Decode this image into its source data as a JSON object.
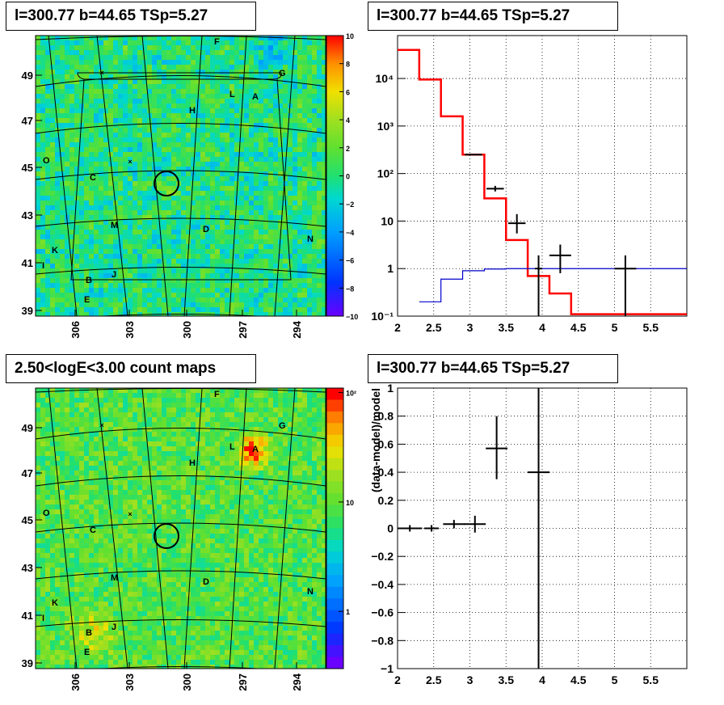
{
  "panels": {
    "map_top_title": "l=300.77 b=44.65 TSp=5.27",
    "spec_title": "l=300.77 b=44.65 TSp=5.27",
    "count_title": "2.50<logE<3.00 count maps",
    "resid_title": "l=300.77 b=44.65 TSp=5.27"
  },
  "chart_data": [
    {
      "type": "heatmap",
      "name": "ts_map",
      "x_ticks": [
        "306",
        "303",
        "300",
        "297",
        "294"
      ],
      "y_ticks": [
        "49",
        "47",
        "45",
        "43",
        "41",
        "39"
      ],
      "colorbar_ticks": [
        "10",
        "8",
        "6",
        "4",
        "2",
        "0",
        "−2",
        "−4",
        "−6",
        "−8",
        "−10"
      ],
      "zlim": [
        -10,
        10
      ],
      "source_labels": [
        "F",
        "G",
        "L",
        "A",
        "H",
        "O",
        "C",
        "M",
        "D",
        "N",
        "K",
        "I",
        "B",
        "J",
        "E"
      ],
      "colors": {
        "high": "#ff0000",
        "mid": "#2fe060",
        "low": "#6a00ff"
      }
    },
    {
      "type": "line",
      "name": "spectrum",
      "log_y": true,
      "xlim": [
        2,
        6
      ],
      "ylim": [
        0.1,
        80000
      ],
      "x_ticks": [
        "2",
        "2.5",
        "3",
        "3.5",
        "4",
        "4.5",
        "5",
        "5.5"
      ],
      "y_ticks": [
        "10⁻¹",
        "1",
        "10",
        "10²",
        "10³",
        "10⁴"
      ],
      "series": [
        {
          "color": "#ff0000",
          "style": "step",
          "bins": [
            [
              2.0,
              2.3,
              40000
            ],
            [
              2.3,
              2.6,
              9500
            ],
            [
              2.6,
              2.9,
              1600
            ],
            [
              2.9,
              3.2,
              250
            ],
            [
              3.2,
              3.5,
              30
            ],
            [
              3.5,
              3.8,
              4
            ],
            [
              3.8,
              4.1,
              0.7
            ],
            [
              4.1,
              4.4,
              0.3
            ],
            [
              4.4,
              6.0,
              0.11
            ]
          ]
        },
        {
          "color": "#0000cc",
          "style": "step",
          "bins": [
            [
              2.3,
              2.6,
              0.2
            ],
            [
              2.6,
              2.9,
              0.6
            ],
            [
              2.9,
              3.2,
              0.9
            ],
            [
              3.2,
              3.5,
              0.98
            ],
            [
              3.5,
              6.0,
              1.0
            ]
          ]
        },
        {
          "color": "#000000",
          "style": "points",
          "points": [
            [
              3.05,
              250,
              0.12,
              250,
              250
            ],
            [
              3.35,
              48,
              0.12,
              42,
              55
            ],
            [
              3.65,
              9,
              0.12,
              5.5,
              14
            ],
            [
              3.95,
              1.0,
              0.05,
              0.1,
              1.9
            ],
            [
              4.25,
              1.9,
              0.15,
              0.8,
              3.2
            ],
            [
              5.15,
              1.0,
              0.15,
              0.1,
              1.9
            ]
          ]
        }
      ]
    },
    {
      "type": "heatmap",
      "name": "count_map",
      "x_ticks": [
        "306",
        "303",
        "300",
        "297",
        "294"
      ],
      "y_ticks": [
        "49",
        "47",
        "45",
        "43",
        "41",
        "39"
      ],
      "colorbar_ticks": [
        "10²",
        "10",
        "1"
      ],
      "zlim": [
        0.3,
        110
      ],
      "log_z": true,
      "source_labels": [
        "F",
        "G",
        "L",
        "A",
        "H",
        "O",
        "C",
        "M",
        "D",
        "N",
        "K",
        "I",
        "B",
        "J",
        "E"
      ],
      "colors": {
        "high": "#ff0000",
        "mid": "#8ce040",
        "low": "#6a00ff"
      }
    },
    {
      "type": "scatter",
      "name": "residuals",
      "xlim": [
        2,
        6
      ],
      "ylim": [
        -1,
        1
      ],
      "ylabel": "(data-model)/model",
      "x_ticks": [
        "2",
        "2.5",
        "3",
        "3.5",
        "4",
        "4.5",
        "5",
        "5.5"
      ],
      "y_ticks": [
        "1",
        "0.8",
        "0.6",
        "0.4",
        "0.2",
        "0",
        "−0.2",
        "−0.4",
        "−0.6",
        "−0.8",
        "−1"
      ],
      "points": [
        [
          2.17,
          0.0,
          0.17
        ],
        [
          2.47,
          0.0,
          0.1
        ],
        [
          2.78,
          0.03,
          0.15,
          0.0,
          0.06
        ],
        [
          3.07,
          0.03,
          0.15,
          -0.03,
          0.09
        ],
        [
          3.37,
          0.57,
          0.15,
          0.35,
          0.8
        ],
        [
          3.95,
          0.4,
          0.15,
          -1.0,
          1.0
        ]
      ]
    }
  ]
}
